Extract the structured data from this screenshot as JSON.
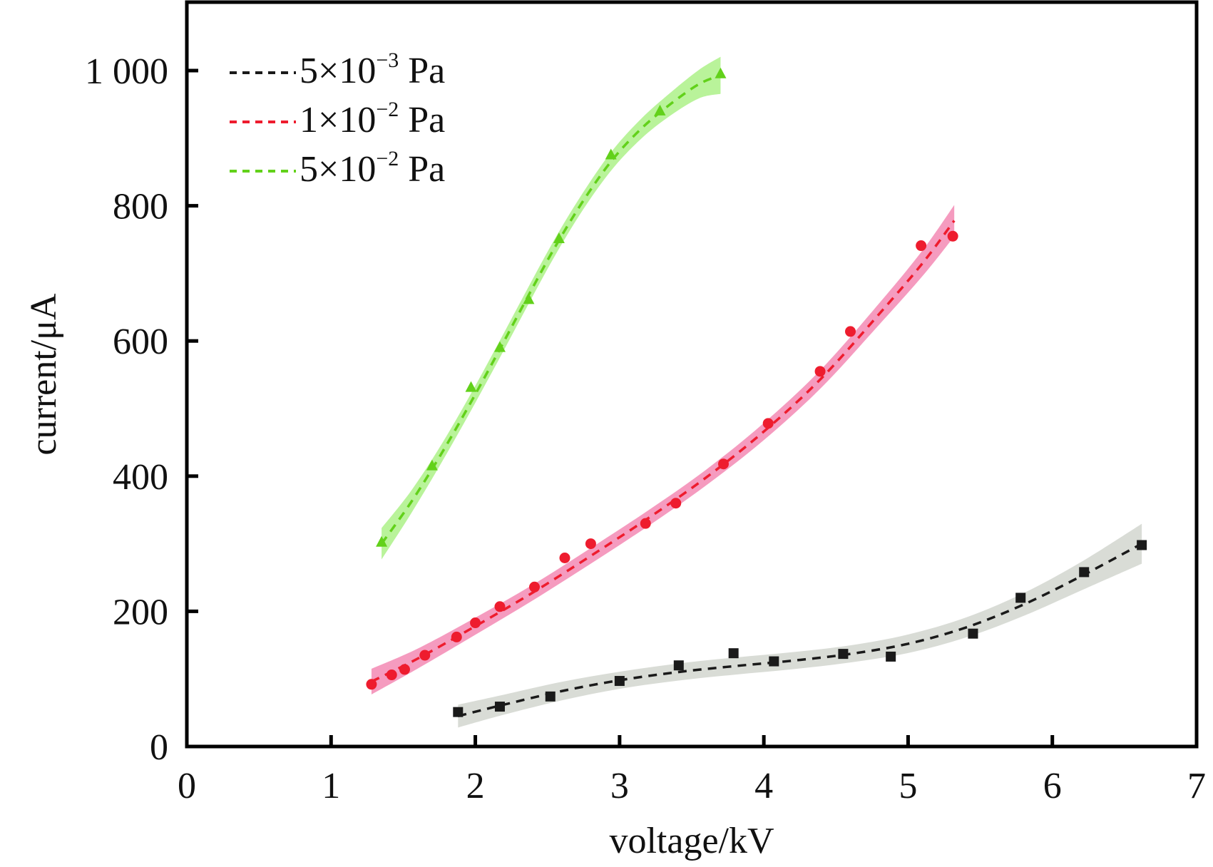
{
  "chart_data": {
    "type": "scatter",
    "title": "",
    "xlabel": "voltage/kV",
    "ylabel": "current/μA",
    "xlim": [
      0,
      7
    ],
    "ylim": [
      0,
      1100
    ],
    "xticks": [
      0,
      1,
      2,
      3,
      4,
      5,
      6,
      7
    ],
    "xtick_labels": [
      "0",
      "1",
      "2",
      "3",
      "4",
      "5",
      "6",
      "7"
    ],
    "yticks": [
      0,
      200,
      400,
      600,
      800,
      1000
    ],
    "ytick_labels": [
      "0",
      "200",
      "400",
      "600",
      "800",
      "1 000"
    ],
    "grid": false,
    "legend_position": "top-left",
    "series": [
      {
        "name": "5×10⁻³ Pa",
        "legend": {
          "mantissa": "5×10",
          "exponent": "−3",
          "unit": " Pa"
        },
        "color": "#1a1a1a",
        "band_color": "#d9dcd6",
        "marker": "square",
        "x": [
          1.88,
          2.17,
          2.52,
          3.0,
          3.41,
          3.79,
          4.07,
          4.55,
          4.88,
          5.45,
          5.78,
          6.22,
          6.62
        ],
        "y": [
          51,
          59,
          74,
          97,
          120,
          138,
          126,
          137,
          133,
          167,
          220,
          258,
          298
        ],
        "fit_x": [
          1.88,
          2.2,
          2.6,
          3.0,
          3.4,
          3.8,
          4.2,
          4.6,
          5.0,
          5.4,
          5.8,
          6.2,
          6.62
        ],
        "fit_y": [
          45,
          62,
          82,
          98,
          110,
          119,
          127,
          137,
          152,
          176,
          210,
          252,
          300
        ],
        "band_halfwidth": [
          16,
          14,
          13,
          12,
          12,
          12,
          12,
          12,
          13,
          14,
          16,
          20,
          28
        ]
      },
      {
        "name": "1×10⁻² Pa",
        "legend": {
          "mantissa": "1×10",
          "exponent": "−2",
          "unit": " Pa"
        },
        "color": "#ee1c2e",
        "band_color": "#f59bbf",
        "marker": "circle",
        "x": [
          1.28,
          1.42,
          1.51,
          1.65,
          1.87,
          2.0,
          2.17,
          2.41,
          2.62,
          2.8,
          3.18,
          3.39,
          3.72,
          4.03,
          4.39,
          4.6,
          5.09,
          5.31
        ],
        "y": [
          92,
          106,
          114,
          135,
          162,
          183,
          207,
          236,
          279,
          300,
          330,
          360,
          418,
          478,
          555,
          614,
          741,
          755
        ],
        "fit_x": [
          1.28,
          1.6,
          2.0,
          2.4,
          2.8,
          3.2,
          3.6,
          4.0,
          4.4,
          4.8,
          5.1,
          5.32
        ],
        "fit_y": [
          96,
          130,
          178,
          228,
          282,
          338,
          398,
          466,
          545,
          640,
          715,
          778
        ],
        "band_halfwidth": [
          18,
          14,
          12,
          11,
          11,
          11,
          11,
          12,
          13,
          15,
          18,
          22
        ]
      },
      {
        "name": "5×10⁻² Pa",
        "legend": {
          "mantissa": "5×10",
          "exponent": "−2",
          "unit": " Pa"
        },
        "color": "#62d11a",
        "band_color": "#b9f39a",
        "marker": "triangle",
        "x": [
          1.35,
          1.7,
          1.97,
          2.17,
          2.37,
          2.58,
          2.94,
          3.28,
          3.7
        ],
        "y": [
          302,
          415,
          531,
          590,
          661,
          751,
          875,
          940,
          995
        ],
        "fit_x": [
          1.35,
          1.55,
          1.75,
          1.95,
          2.15,
          2.35,
          2.55,
          2.75,
          2.95,
          3.15,
          3.35,
          3.55,
          3.7
        ],
        "fit_y": [
          300,
          360,
          428,
          502,
          580,
          660,
          738,
          808,
          868,
          914,
          950,
          980,
          993
        ],
        "band_halfwidth": [
          22,
          16,
          13,
          12,
          12,
          12,
          12,
          12,
          13,
          14,
          16,
          20,
          26
        ]
      }
    ]
  }
}
